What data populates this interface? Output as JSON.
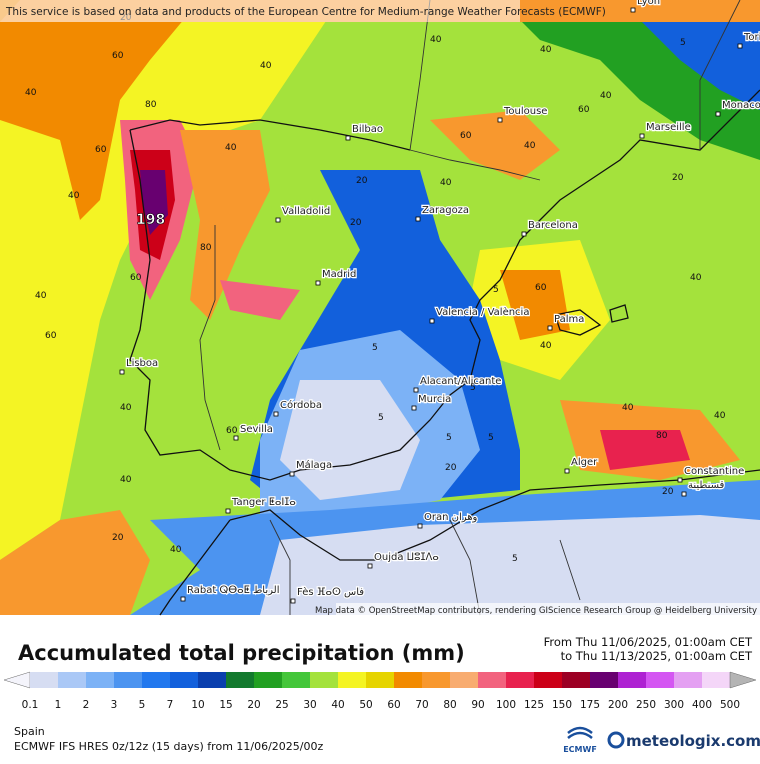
{
  "attribution_top": "This service is based on data and products of the European Centre for Medium-range Weather Forecasts (ECMWF)",
  "map_credit": "Map data © OpenStreetMap contributors, rendering GIScience Research Group @ Heidelberg University",
  "cities": [
    "Lyon",
    "Torino",
    "Monaco",
    "Marseille",
    "Toulouse",
    "Bilbao",
    "Valladolid",
    "Zaragoza",
    "Barcelona",
    "Madrid",
    "Valencia / València",
    "Palma",
    "Lisboa",
    "Alacant/Alicante",
    "Murcia",
    "Córdoba",
    "Sevilla",
    "Málaga",
    "Tanger ⵟⴰⵏⵊⴰ",
    "Oran وهران",
    "Oujda ⵡⵓⵊⴷⴰ",
    "Rabat ⵕⴱⴰⵟ الرباط",
    "Fès ⴼⴰⵙ فاس",
    "Alger",
    "Constantine",
    "قسنطينة"
  ],
  "max_label": "198",
  "contour_labels": [
    "40",
    "60",
    "60",
    "80",
    "40",
    "60",
    "40",
    "80",
    "40",
    "60",
    "40",
    "60",
    "40",
    "20",
    "40",
    "40",
    "5",
    "5",
    "40",
    "20",
    "60",
    "40",
    "40",
    "5",
    "5",
    "5",
    "20",
    "40",
    "60",
    "80",
    "40",
    "20",
    "40",
    "5",
    "5",
    "20",
    "40",
    "40",
    "40",
    "20",
    "60",
    "5",
    "20"
  ],
  "title": "Accumulated total precipitation (mm)",
  "period_from": "From Thu 11/06/2025, 01:00am CET",
  "period_to": "to Thu 11/13/2025, 01:00am CET",
  "scale_labels": [
    0.1,
    1,
    2,
    3,
    5,
    7,
    10,
    15,
    20,
    25,
    30,
    40,
    50,
    60,
    70,
    80,
    90,
    100,
    125,
    150,
    175,
    200,
    250,
    300,
    400,
    500
  ],
  "scale_colors": [
    "#f4f4fb",
    "#d6ddf2",
    "#aac8f6",
    "#7cb2f6",
    "#4c94f0",
    "#2278ee",
    "#1260dc",
    "#0a3fae",
    "#137a2e",
    "#22a022",
    "#44c63a",
    "#a4e23c",
    "#f4f424",
    "#e6d400",
    "#f28a00",
    "#f8982e",
    "#f8ac70",
    "#f2637e",
    "#e8224e",
    "#cc0018",
    "#9c0024",
    "#680070",
    "#ae22d2",
    "#d456f2",
    "#e4a0f2",
    "#f4d6f8",
    "#b4b4b4"
  ],
  "region": "Spain",
  "model": "ECMWF IFS HRES 0z/12z (15 days) from 11/06/2025/00z",
  "logo_ecmwf": "ECMWF",
  "logo_meteologix": "meteologix.com"
}
